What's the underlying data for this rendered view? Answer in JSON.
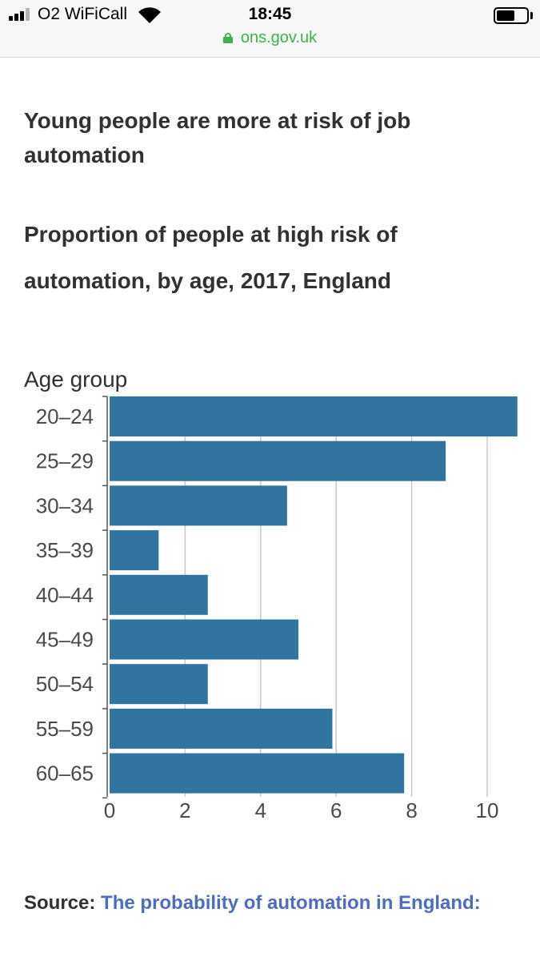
{
  "status_bar": {
    "carrier": "O2 WiFiCall",
    "time": "18:45",
    "url": "ons.gov.uk",
    "url_color": "#3fb24b"
  },
  "chart": {
    "title": "Young people are more at risk of job automation",
    "subtitle": "Proportion of people at high risk of automation, by age, 2017, England",
    "source_label": "Source:",
    "source_link_text": "The probability of automation in England:",
    "link_color": "#4a6ec2",
    "bar_color": "#31749f"
  },
  "chart_data": {
    "type": "bar",
    "orientation": "horizontal",
    "ylabel": "Age group",
    "xlabel": "",
    "categories": [
      "20–24",
      "25–29",
      "30–34",
      "35–39",
      "40–44",
      "45–49",
      "50–54",
      "55–59",
      "60–65"
    ],
    "values": [
      10.8,
      8.9,
      4.7,
      1.3,
      2.6,
      5.0,
      2.6,
      5.9,
      7.8
    ],
    "xlim": [
      0,
      10.8
    ],
    "xticks": [
      0,
      2,
      4,
      6,
      8,
      10
    ],
    "grid": "vertical",
    "legend": "none"
  }
}
